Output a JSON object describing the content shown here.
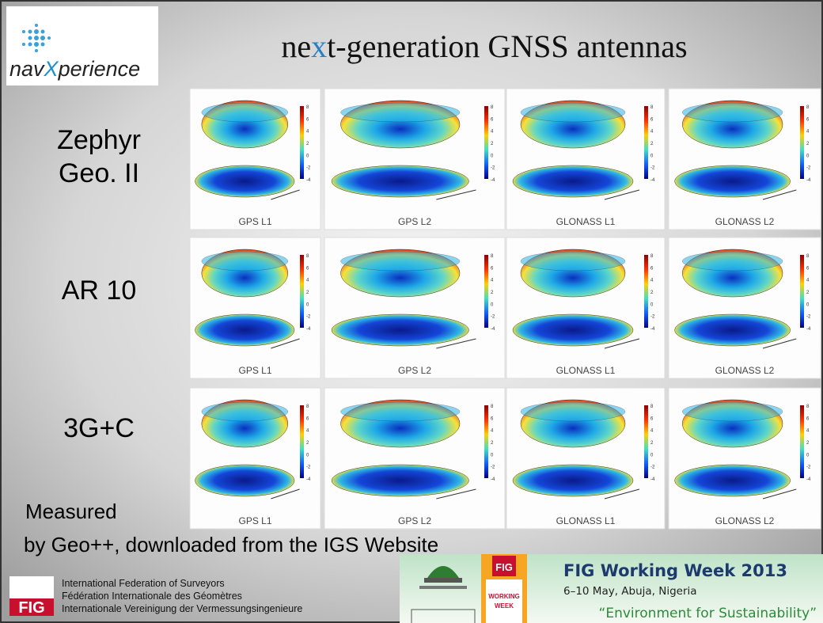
{
  "header": {
    "logo_parts": [
      "nav",
      "X",
      "perience"
    ],
    "title_parts": [
      "ne",
      "x",
      "t-generation GNSS antennas"
    ]
  },
  "rows": [
    {
      "label": [
        "Zephyr",
        "Geo. II"
      ],
      "captions": [
        "GPS L1",
        "GPS L2",
        "GLONASS L1",
        "GLONASS L2"
      ]
    },
    {
      "label": [
        "AR 10"
      ],
      "captions": [
        "GPS L1",
        "GPS L2",
        "GLONASS L1",
        "GLONASS L2"
      ]
    },
    {
      "label": [
        "3G+C"
      ],
      "captions": [
        "GPS L1",
        "GPS L2",
        "GLONASS L1",
        "GLONASS L2"
      ]
    }
  ],
  "colorbar_ticks": [
    "8",
    "6",
    "4",
    "2",
    "0",
    "-2",
    "-4"
  ],
  "note": [
    "Measured",
    "by Geo++, downloaded from the IGS Website"
  ],
  "footer": {
    "fig_logo": "FIG",
    "federation_lines": [
      "International Federation of Surveyors",
      "Fédération Internationale des Géomètres",
      "Internationale Vereinigung der Vermessungsingenieure"
    ],
    "badge": [
      "FIG",
      "WORKING",
      "WEEK"
    ],
    "event_title": "FIG Working Week 2013",
    "event_date": "6–10 May, Abuja, Nigeria",
    "event_theme": "“Environment for Sustainability”"
  }
}
